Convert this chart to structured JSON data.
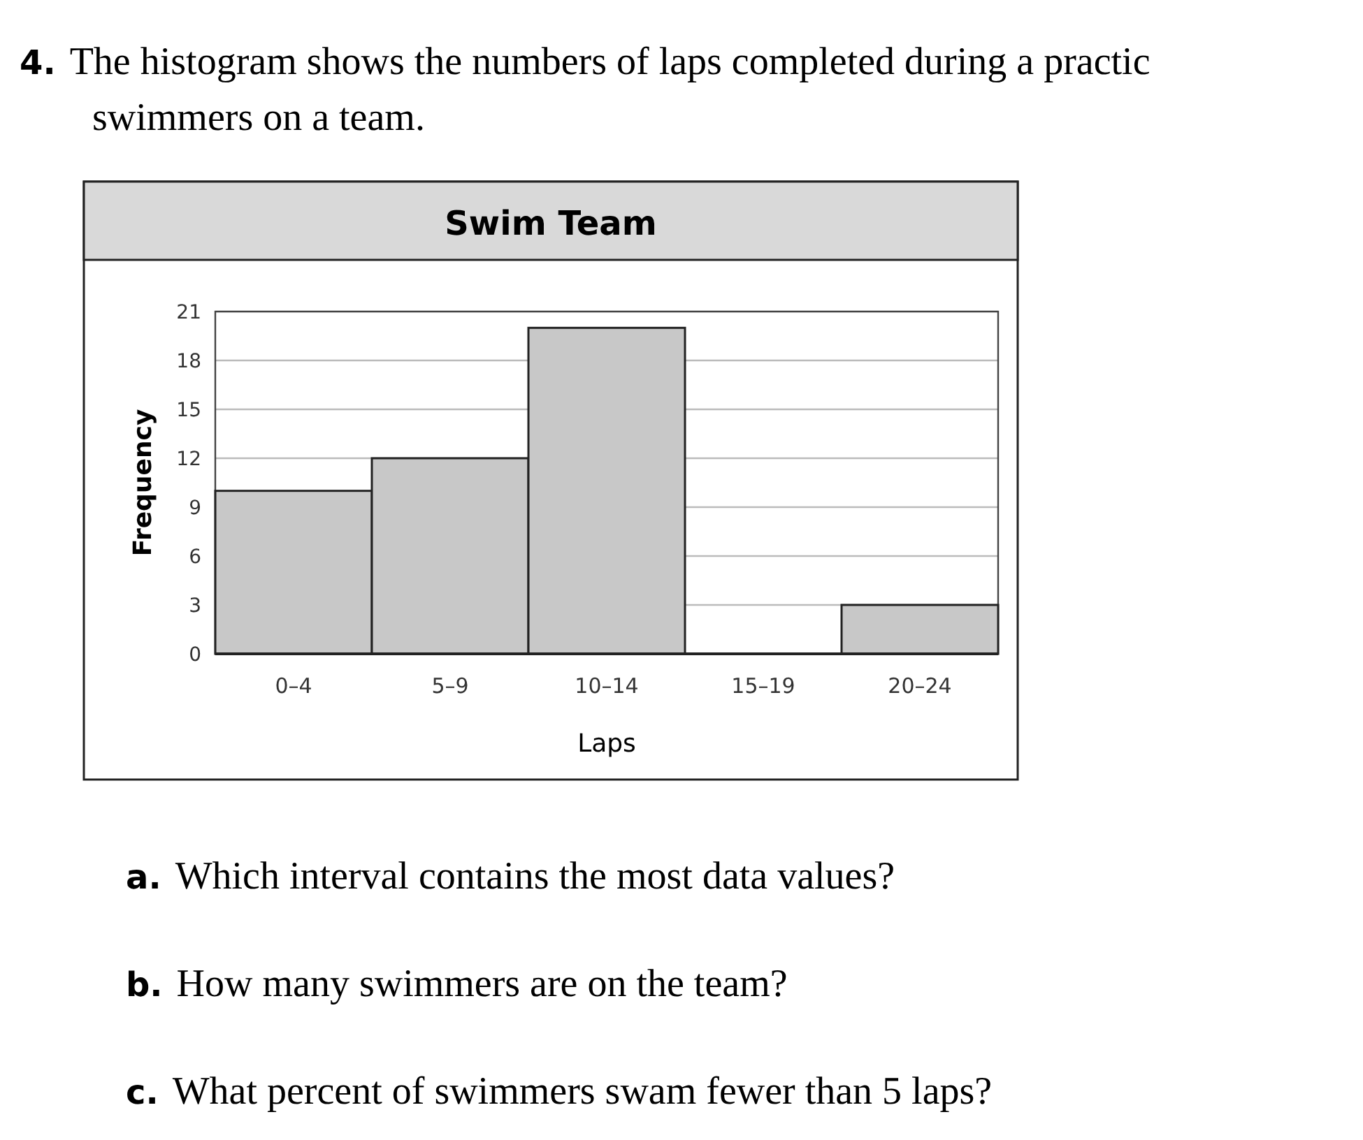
{
  "chart_data": {
    "type": "bar",
    "title": "Swim Team",
    "xlabel": "Laps",
    "ylabel": "Frequency",
    "categories": [
      "0–4",
      "5–9",
      "10–14",
      "15–19",
      "20–24"
    ],
    "values": [
      10,
      12,
      20,
      0,
      3
    ],
    "color": "#c8c8c8",
    "ylim": [
      0,
      21
    ],
    "yticks": [
      0,
      3,
      6,
      9,
      12,
      15,
      18,
      21
    ],
    "grid": "y",
    "annotations": [
      "4. The histogram shows the numbers of laps completed during a practic",
      "swimmers on a team.",
      "a. Which interval contains the most data values?",
      "b. How many swimmers are on the team?",
      "c. What percent of swimmers swam fewer than 5 laps?"
    ]
  }
}
